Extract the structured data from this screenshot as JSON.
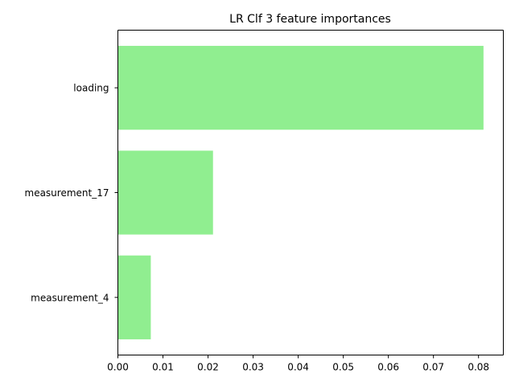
{
  "chart_data": {
    "type": "bar",
    "orientation": "horizontal",
    "title": "LR Clf 3 feature importances",
    "xlabel": "",
    "ylabel": "",
    "categories": [
      "measurement_4",
      "measurement_17",
      "loading"
    ],
    "values": [
      0.0073,
      0.0211,
      0.0811
    ],
    "xlim": [
      0.0,
      0.0855
    ],
    "xticks": [
      0.0,
      0.01,
      0.02,
      0.03,
      0.04,
      0.05,
      0.06,
      0.07,
      0.08
    ],
    "xtick_labels": [
      "0.00",
      "0.01",
      "0.02",
      "0.03",
      "0.04",
      "0.05",
      "0.06",
      "0.07",
      "0.08"
    ],
    "bar_color": "#90ee90",
    "grid": false,
    "legend": "none"
  }
}
